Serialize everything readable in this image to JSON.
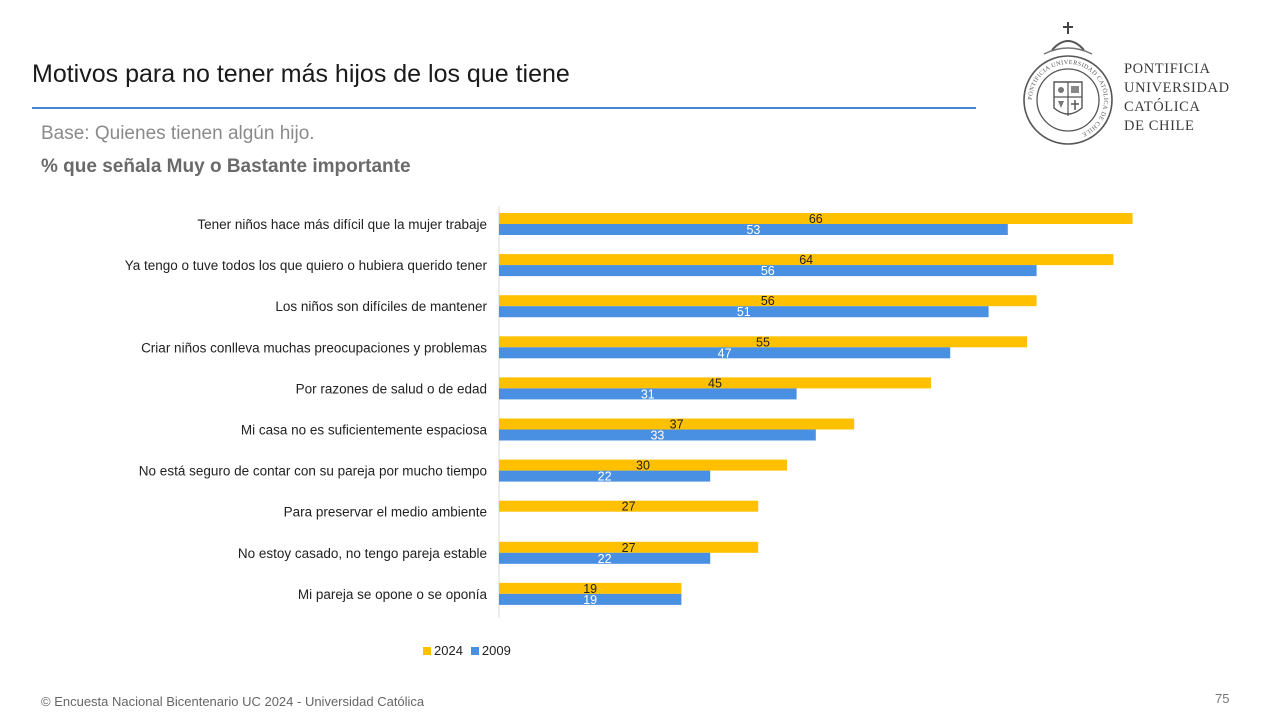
{
  "header": {
    "title": "Motivos para no tener más hijos de los que tiene",
    "subtitle": "Base: Quienes tienen algún hijo.",
    "metric": "% que señala Muy o Bastante importante"
  },
  "logo": {
    "lines": [
      "PONTIFICIA",
      "UNIVERSIDAD",
      "CATÓLICA",
      "DE CHILE"
    ],
    "seal_text": "PONTIFICIA UNIVERSIDAD CATÓLICA DE CHILE"
  },
  "colors": {
    "series_2024": "#ffc000",
    "series_2009": "#4a90e2",
    "rule": "#4a86d8"
  },
  "chart_data": {
    "type": "bar",
    "orientation": "horizontal",
    "categories": [
      "Tener niños hace más difícil que la mujer trabaje",
      "Ya tengo o tuve todos los que quiero o hubiera querido tener",
      "Los niños son difíciles de mantener",
      "Criar niños conlleva muchas preocupaciones y problemas",
      "Por razones de salud o de edad",
      "Mi casa no es suficientemente espaciosa",
      "No está seguro de contar con su pareja por mucho tiempo",
      "Para preservar el medio ambiente",
      "No estoy casado, no tengo pareja estable",
      "Mi pareja se opone o se oponía"
    ],
    "series": [
      {
        "name": "2024",
        "values": [
          66,
          64,
          56,
          55,
          45,
          37,
          30,
          27,
          27,
          19
        ]
      },
      {
        "name": "2009",
        "values": [
          53,
          56,
          51,
          47,
          31,
          33,
          22,
          null,
          22,
          19
        ]
      }
    ],
    "xlim": [
      0,
      70
    ],
    "legend": "bottom-center",
    "grid": false
  },
  "footer": {
    "source": "© Encuesta Nacional Bicentenario UC 2024 - Universidad Católica",
    "page": "75"
  }
}
